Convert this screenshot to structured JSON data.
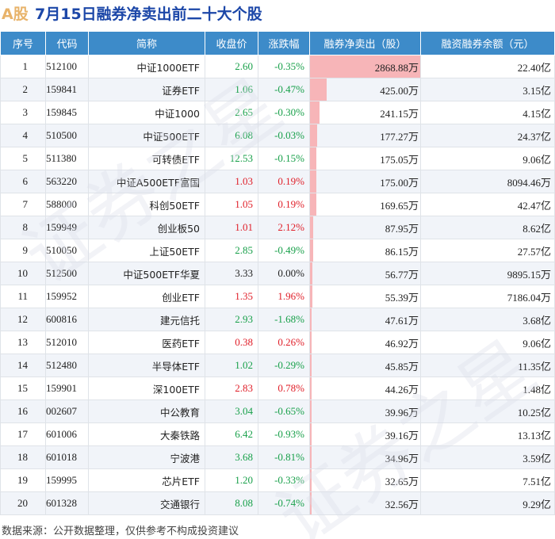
{
  "title": {
    "prefix": "A股",
    "text": "7月15日融券净卖出前二十大个股"
  },
  "columns": [
    "序号",
    "代码",
    "简称",
    "收盘价",
    "涨跌幅",
    "融券净卖出（股）",
    "融资融券余额（元）"
  ],
  "rows": [
    {
      "idx": "1",
      "code": "512100",
      "name": "中证1000ETF",
      "price": "2.60",
      "change": "-0.35%",
      "net_sell": "2868.88万",
      "net_sell_value": 2868.88,
      "balance": "22.40亿",
      "color": "down"
    },
    {
      "idx": "2",
      "code": "159841",
      "name": "证券ETF",
      "price": "1.06",
      "change": "-0.47%",
      "net_sell": "425.00万",
      "net_sell_value": 425.0,
      "balance": "3.15亿",
      "color": "down"
    },
    {
      "idx": "3",
      "code": "159845",
      "name": "中证1000",
      "price": "2.65",
      "change": "-0.30%",
      "net_sell": "241.15万",
      "net_sell_value": 241.15,
      "balance": "4.15亿",
      "color": "down"
    },
    {
      "idx": "4",
      "code": "510500",
      "name": "中证500ETF",
      "price": "6.08",
      "change": "-0.03%",
      "net_sell": "177.27万",
      "net_sell_value": 177.27,
      "balance": "24.37亿",
      "color": "down"
    },
    {
      "idx": "5",
      "code": "511380",
      "name": "可转债ETF",
      "price": "12.53",
      "change": "-0.15%",
      "net_sell": "175.05万",
      "net_sell_value": 175.05,
      "balance": "9.06亿",
      "color": "down"
    },
    {
      "idx": "6",
      "code": "563220",
      "name": "中证A500ETF富国",
      "price": "1.03",
      "change": "0.19%",
      "net_sell": "175.00万",
      "net_sell_value": 175.0,
      "balance": "8094.46万",
      "color": "up"
    },
    {
      "idx": "7",
      "code": "588000",
      "name": "科创50ETF",
      "price": "1.05",
      "change": "0.19%",
      "net_sell": "169.65万",
      "net_sell_value": 169.65,
      "balance": "42.47亿",
      "color": "up"
    },
    {
      "idx": "8",
      "code": "159949",
      "name": "创业板50",
      "price": "1.01",
      "change": "2.12%",
      "net_sell": "87.95万",
      "net_sell_value": 87.95,
      "balance": "8.62亿",
      "color": "up"
    },
    {
      "idx": "9",
      "code": "510050",
      "name": "上证50ETF",
      "price": "2.85",
      "change": "-0.49%",
      "net_sell": "86.15万",
      "net_sell_value": 86.15,
      "balance": "27.57亿",
      "color": "down"
    },
    {
      "idx": "10",
      "code": "512500",
      "name": "中证500ETF华夏",
      "price": "3.33",
      "change": "0.00%",
      "net_sell": "56.77万",
      "net_sell_value": 56.77,
      "balance": "9895.15万",
      "color": "flat"
    },
    {
      "idx": "11",
      "code": "159952",
      "name": "创业ETF",
      "price": "1.35",
      "change": "1.96%",
      "net_sell": "55.39万",
      "net_sell_value": 55.39,
      "balance": "7186.04万",
      "color": "up"
    },
    {
      "idx": "12",
      "code": "600816",
      "name": "建元信托",
      "price": "2.93",
      "change": "-1.68%",
      "net_sell": "47.61万",
      "net_sell_value": 47.61,
      "balance": "3.68亿",
      "color": "down"
    },
    {
      "idx": "13",
      "code": "512010",
      "name": "医药ETF",
      "price": "0.38",
      "change": "0.26%",
      "net_sell": "46.92万",
      "net_sell_value": 46.92,
      "balance": "9.06亿",
      "color": "up"
    },
    {
      "idx": "14",
      "code": "512480",
      "name": "半导体ETF",
      "price": "1.02",
      "change": "-0.29%",
      "net_sell": "45.85万",
      "net_sell_value": 45.85,
      "balance": "11.35亿",
      "color": "down"
    },
    {
      "idx": "15",
      "code": "159901",
      "name": "深100ETF",
      "price": "2.83",
      "change": "0.78%",
      "net_sell": "44.26万",
      "net_sell_value": 44.26,
      "balance": "1.48亿",
      "color": "up"
    },
    {
      "idx": "16",
      "code": "002607",
      "name": "中公教育",
      "price": "3.04",
      "change": "-0.65%",
      "net_sell": "39.96万",
      "net_sell_value": 39.96,
      "balance": "10.25亿",
      "color": "down"
    },
    {
      "idx": "17",
      "code": "601006",
      "name": "大秦铁路",
      "price": "6.42",
      "change": "-0.93%",
      "net_sell": "39.16万",
      "net_sell_value": 39.16,
      "balance": "13.13亿",
      "color": "down"
    },
    {
      "idx": "18",
      "code": "601018",
      "name": "宁波港",
      "price": "3.68",
      "change": "-0.81%",
      "net_sell": "34.96万",
      "net_sell_value": 34.96,
      "balance": "3.59亿",
      "color": "down"
    },
    {
      "idx": "19",
      "code": "159995",
      "name": "芯片ETF",
      "price": "1.20",
      "change": "-0.33%",
      "net_sell": "32.65万",
      "net_sell_value": 32.65,
      "balance": "7.51亿",
      "color": "down"
    },
    {
      "idx": "20",
      "code": "601328",
      "name": "交通银行",
      "price": "8.08",
      "change": "-0.74%",
      "net_sell": "32.56万",
      "net_sell_value": 32.56,
      "balance": "9.29亿",
      "color": "down"
    }
  ],
  "colors": {
    "header_bg": "#3d8bc9",
    "up": "#e0202a",
    "down": "#18a04a",
    "bar": "#f7b5b8",
    "title": "#1c47a8"
  },
  "watermark": "证券之星",
  "footer": "数据来源：公开数据整理，仅供参考不构成投资建议"
}
